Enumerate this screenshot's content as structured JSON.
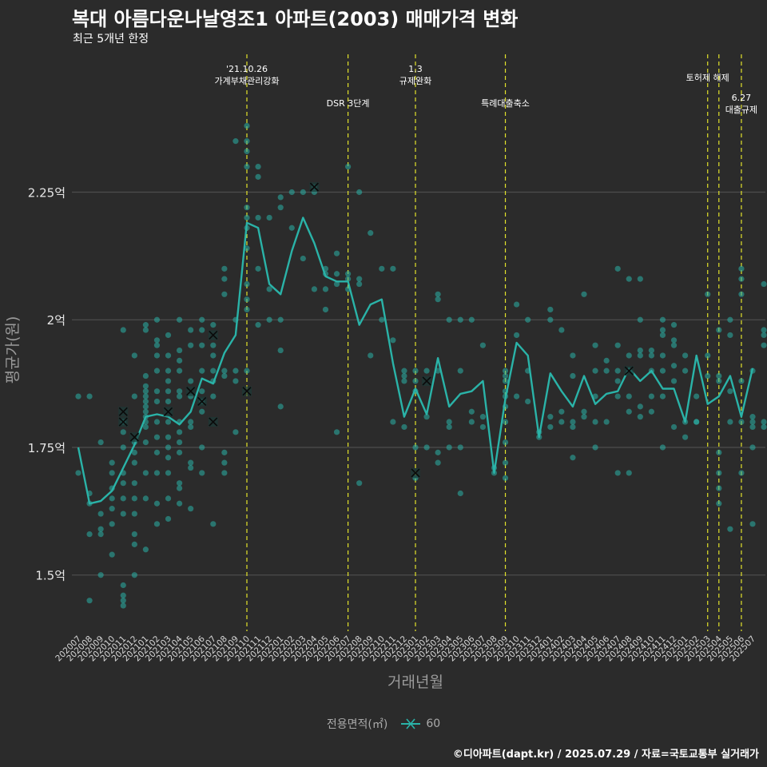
{
  "title": "복대 아름다운나날영조1 아파트(2003) 매매가격 변화",
  "subtitle": "최근 5개년 한정",
  "caption": "©디아파트(dapt.kr) / 2025.07.29 / 자료=국토교통부 실거래가",
  "legend": {
    "title": "전용면적(㎡)",
    "label": "60"
  },
  "colors": {
    "background": "#2b2b2b",
    "series": "#2ab3a8",
    "event_line": "#e3e32b",
    "grid": "#4d4d4d"
  },
  "chart_data": {
    "type": "line",
    "xlabel": "거래년월",
    "ylabel": "평균가(원)",
    "x": [
      "202007",
      "202008",
      "202009",
      "202010",
      "202011",
      "202012",
      "202101",
      "202102",
      "202103",
      "202104",
      "202105",
      "202106",
      "202107",
      "202108",
      "202109",
      "202110",
      "202111",
      "202112",
      "202201",
      "202202",
      "202203",
      "202204",
      "202205",
      "202206",
      "202207",
      "202208",
      "202209",
      "202210",
      "202211",
      "202212",
      "202301",
      "202302",
      "202303",
      "202304",
      "202305",
      "202306",
      "202307",
      "202308",
      "202309",
      "202310",
      "202311",
      "202312",
      "202401",
      "202402",
      "202403",
      "202404",
      "202405",
      "202406",
      "202407",
      "202408",
      "202409",
      "202410",
      "202411",
      "202412",
      "202501",
      "202502",
      "202503",
      "202504",
      "202505",
      "202506",
      "202507"
    ],
    "ylim": [
      1.39,
      2.52
    ],
    "yticks": [
      1.5,
      1.75,
      2.0,
      2.25
    ],
    "ytick_labels": [
      "1.5억",
      "1.75억",
      "2억",
      "2.25억"
    ],
    "series": [
      {
        "name": "60",
        "values": [
          1.75,
          1.64,
          1.645,
          1.665,
          1.71,
          1.755,
          1.81,
          1.815,
          1.81,
          1.795,
          1.82,
          1.885,
          1.875,
          1.935,
          1.97,
          2.19,
          2.18,
          2.07,
          2.05,
          2.135,
          2.2,
          2.15,
          2.085,
          2.075,
          2.075,
          1.99,
          2.03,
          2.04,
          1.915,
          1.81,
          1.865,
          1.815,
          1.925,
          1.83,
          1.855,
          1.86,
          1.88,
          1.7,
          1.845,
          1.955,
          1.93,
          1.77,
          1.895,
          1.86,
          1.83,
          1.89,
          1.835,
          1.855,
          1.86,
          1.905,
          1.88,
          1.9,
          1.865,
          1.865,
          1.8,
          1.93,
          1.835,
          1.85,
          1.89,
          1.81,
          1.905
        ]
      }
    ],
    "scatter": [
      [
        0,
        1.85
      ],
      [
        0,
        1.7
      ],
      [
        1,
        1.85
      ],
      [
        1,
        1.66
      ],
      [
        1,
        1.64
      ],
      [
        1,
        1.58
      ],
      [
        1,
        1.45
      ],
      [
        2,
        1.76
      ],
      [
        2,
        1.62
      ],
      [
        2,
        1.59
      ],
      [
        2,
        1.58
      ],
      [
        2,
        1.5
      ],
      [
        3,
        1.72
      ],
      [
        3,
        1.7
      ],
      [
        3,
        1.67
      ],
      [
        3,
        1.65
      ],
      [
        3,
        1.63
      ],
      [
        3,
        1.6
      ],
      [
        3,
        1.54
      ],
      [
        4,
        1.98
      ],
      [
        4,
        1.8
      ],
      [
        4,
        1.78
      ],
      [
        4,
        1.75
      ],
      [
        4,
        1.7
      ],
      [
        4,
        1.68
      ],
      [
        4,
        1.65
      ],
      [
        4,
        1.62
      ],
      [
        4,
        1.48
      ],
      [
        4,
        1.46
      ],
      [
        4,
        1.45
      ],
      [
        4,
        1.44
      ],
      [
        5,
        1.93
      ],
      [
        5,
        1.85
      ],
      [
        5,
        1.76
      ],
      [
        5,
        1.74
      ],
      [
        5,
        1.72
      ],
      [
        5,
        1.68
      ],
      [
        5,
        1.65
      ],
      [
        5,
        1.62
      ],
      [
        5,
        1.58
      ],
      [
        5,
        1.56
      ],
      [
        5,
        1.5
      ],
      [
        6,
        1.99
      ],
      [
        6,
        1.98
      ],
      [
        6,
        1.89
      ],
      [
        6,
        1.87
      ],
      [
        6,
        1.86
      ],
      [
        6,
        1.85
      ],
      [
        6,
        1.84
      ],
      [
        6,
        1.83
      ],
      [
        6,
        1.82
      ],
      [
        6,
        1.81
      ],
      [
        6,
        1.8
      ],
      [
        6,
        1.79
      ],
      [
        6,
        1.76
      ],
      [
        6,
        1.7
      ],
      [
        6,
        1.65
      ],
      [
        6,
        1.55
      ],
      [
        7,
        2.0
      ],
      [
        7,
        1.96
      ],
      [
        7,
        1.95
      ],
      [
        7,
        1.93
      ],
      [
        7,
        1.9
      ],
      [
        7,
        1.86
      ],
      [
        7,
        1.84
      ],
      [
        7,
        1.8
      ],
      [
        7,
        1.77
      ],
      [
        7,
        1.74
      ],
      [
        7,
        1.7
      ],
      [
        7,
        1.64
      ],
      [
        7,
        1.6
      ],
      [
        8,
        1.97
      ],
      [
        8,
        1.93
      ],
      [
        8,
        1.9
      ],
      [
        8,
        1.88
      ],
      [
        8,
        1.86
      ],
      [
        8,
        1.84
      ],
      [
        8,
        1.8
      ],
      [
        8,
        1.77
      ],
      [
        8,
        1.75
      ],
      [
        8,
        1.73
      ],
      [
        8,
        1.7
      ],
      [
        8,
        1.65
      ],
      [
        8,
        1.61
      ],
      [
        9,
        2.0
      ],
      [
        9,
        1.94
      ],
      [
        9,
        1.92
      ],
      [
        9,
        1.9
      ],
      [
        9,
        1.86
      ],
      [
        9,
        1.85
      ],
      [
        9,
        1.8
      ],
      [
        9,
        1.78
      ],
      [
        9,
        1.76
      ],
      [
        9,
        1.74
      ],
      [
        9,
        1.68
      ],
      [
        9,
        1.67
      ],
      [
        9,
        1.64
      ],
      [
        10,
        1.98
      ],
      [
        10,
        1.95
      ],
      [
        10,
        1.88
      ],
      [
        10,
        1.85
      ],
      [
        10,
        1.8
      ],
      [
        10,
        1.79
      ],
      [
        10,
        1.72
      ],
      [
        10,
        1.71
      ],
      [
        10,
        1.63
      ],
      [
        11,
        2.0
      ],
      [
        11,
        1.98
      ],
      [
        11,
        1.95
      ],
      [
        11,
        1.9
      ],
      [
        11,
        1.86
      ],
      [
        11,
        1.84
      ],
      [
        11,
        1.82
      ],
      [
        11,
        1.75
      ],
      [
        11,
        1.7
      ],
      [
        12,
        1.99
      ],
      [
        12,
        1.95
      ],
      [
        12,
        1.93
      ],
      [
        12,
        1.9
      ],
      [
        12,
        1.88
      ],
      [
        12,
        1.85
      ],
      [
        12,
        1.6
      ],
      [
        13,
        2.1
      ],
      [
        13,
        2.08
      ],
      [
        13,
        2.05
      ],
      [
        13,
        1.9
      ],
      [
        13,
        1.89
      ],
      [
        13,
        1.74
      ],
      [
        13,
        1.72
      ],
      [
        13,
        1.7
      ],
      [
        14,
        2.0
      ],
      [
        14,
        1.9
      ],
      [
        14,
        1.88
      ],
      [
        14,
        1.78
      ],
      [
        15,
        2.38
      ],
      [
        15,
        2.35
      ],
      [
        15,
        2.33
      ],
      [
        15,
        2.3
      ],
      [
        15,
        2.22
      ],
      [
        15,
        2.2
      ],
      [
        15,
        2.18
      ],
      [
        15,
        2.14
      ],
      [
        15,
        2.07
      ],
      [
        15,
        2.04
      ],
      [
        15,
        2.02
      ],
      [
        15,
        1.9
      ],
      [
        14,
        2.35
      ],
      [
        16,
        2.3
      ],
      [
        16,
        2.28
      ],
      [
        16,
        2.2
      ],
      [
        16,
        2.1
      ],
      [
        16,
        1.99
      ],
      [
        17,
        2.2
      ],
      [
        17,
        2.06
      ],
      [
        17,
        2.0
      ],
      [
        18,
        2.24
      ],
      [
        18,
        2.22
      ],
      [
        18,
        2.0
      ],
      [
        18,
        1.94
      ],
      [
        18,
        1.83
      ],
      [
        19,
        2.25
      ],
      [
        19,
        2.18
      ],
      [
        20,
        2.25
      ],
      [
        20,
        2.12
      ],
      [
        21,
        2.26
      ],
      [
        21,
        2.25
      ],
      [
        21,
        2.06
      ],
      [
        22,
        2.1
      ],
      [
        22,
        2.09
      ],
      [
        22,
        2.06
      ],
      [
        22,
        2.02
      ],
      [
        23,
        2.13
      ],
      [
        23,
        2.09
      ],
      [
        23,
        2.07
      ],
      [
        23,
        1.78
      ],
      [
        24,
        2.3
      ],
      [
        24,
        2.09
      ],
      [
        24,
        2.08
      ],
      [
        24,
        2.06
      ],
      [
        25,
        2.25
      ],
      [
        25,
        2.08
      ],
      [
        25,
        2.07
      ],
      [
        25,
        1.68
      ],
      [
        26,
        2.17
      ],
      [
        26,
        1.93
      ],
      [
        27,
        2.1
      ],
      [
        27,
        2.0
      ],
      [
        28,
        2.1
      ],
      [
        28,
        1.96
      ],
      [
        28,
        1.8
      ],
      [
        29,
        1.9
      ],
      [
        29,
        1.89
      ],
      [
        29,
        1.88
      ],
      [
        29,
        1.79
      ],
      [
        30,
        1.9
      ],
      [
        30,
        1.88
      ],
      [
        30,
        1.86
      ],
      [
        30,
        1.75
      ],
      [
        30,
        1.69
      ],
      [
        31,
        1.9
      ],
      [
        31,
        1.81
      ],
      [
        31,
        1.75
      ],
      [
        32,
        2.05
      ],
      [
        32,
        2.04
      ],
      [
        32,
        1.9
      ],
      [
        32,
        1.74
      ],
      [
        32,
        1.72
      ],
      [
        33,
        2.0
      ],
      [
        33,
        1.8
      ],
      [
        33,
        1.79
      ],
      [
        33,
        1.75
      ],
      [
        34,
        2.0
      ],
      [
        34,
        1.9
      ],
      [
        34,
        1.75
      ],
      [
        34,
        1.66
      ],
      [
        35,
        2.0
      ],
      [
        35,
        1.82
      ],
      [
        35,
        1.8
      ],
      [
        36,
        1.95
      ],
      [
        36,
        1.81
      ],
      [
        36,
        1.79
      ],
      [
        37,
        1.71
      ],
      [
        37,
        1.7
      ],
      [
        38,
        1.9
      ],
      [
        38,
        1.89
      ],
      [
        38,
        1.88
      ],
      [
        38,
        1.86
      ],
      [
        38,
        1.85
      ],
      [
        38,
        1.83
      ],
      [
        38,
        1.8
      ],
      [
        38,
        1.76
      ],
      [
        38,
        1.72
      ],
      [
        38,
        1.69
      ],
      [
        39,
        2.03
      ],
      [
        39,
        1.97
      ],
      [
        39,
        1.85
      ],
      [
        40,
        2.0
      ],
      [
        40,
        1.9
      ],
      [
        40,
        1.84
      ],
      [
        41,
        1.78
      ],
      [
        41,
        1.77
      ],
      [
        42,
        2.02
      ],
      [
        42,
        2.0
      ],
      [
        42,
        1.81
      ],
      [
        42,
        1.79
      ],
      [
        43,
        1.98
      ],
      [
        43,
        1.82
      ],
      [
        43,
        1.8
      ],
      [
        44,
        1.93
      ],
      [
        44,
        1.89
      ],
      [
        44,
        1.8
      ],
      [
        44,
        1.79
      ],
      [
        44,
        1.73
      ],
      [
        45,
        2.05
      ],
      [
        45,
        1.82
      ],
      [
        45,
        1.81
      ],
      [
        46,
        1.95
      ],
      [
        46,
        1.9
      ],
      [
        46,
        1.85
      ],
      [
        46,
        1.8
      ],
      [
        46,
        1.75
      ],
      [
        47,
        1.92
      ],
      [
        47,
        1.9
      ],
      [
        47,
        1.8
      ],
      [
        48,
        2.1
      ],
      [
        48,
        1.95
      ],
      [
        48,
        1.9
      ],
      [
        48,
        1.88
      ],
      [
        48,
        1.85
      ],
      [
        48,
        1.7
      ],
      [
        49,
        2.08
      ],
      [
        49,
        1.93
      ],
      [
        49,
        1.85
      ],
      [
        49,
        1.82
      ],
      [
        49,
        1.7
      ],
      [
        50,
        2.08
      ],
      [
        50,
        2.0
      ],
      [
        50,
        1.94
      ],
      [
        50,
        1.93
      ],
      [
        50,
        1.83
      ],
      [
        50,
        1.81
      ],
      [
        51,
        1.94
      ],
      [
        51,
        1.93
      ],
      [
        51,
        1.9
      ],
      [
        51,
        1.85
      ],
      [
        51,
        1.82
      ],
      [
        52,
        2.0
      ],
      [
        52,
        1.98
      ],
      [
        52,
        1.97
      ],
      [
        52,
        1.93
      ],
      [
        52,
        1.9
      ],
      [
        52,
        1.85
      ],
      [
        52,
        1.75
      ],
      [
        53,
        1.99
      ],
      [
        53,
        1.96
      ],
      [
        53,
        1.95
      ],
      [
        53,
        1.91
      ],
      [
        53,
        1.88
      ],
      [
        53,
        1.79
      ],
      [
        54,
        1.93
      ],
      [
        54,
        1.9
      ],
      [
        54,
        1.8
      ],
      [
        54,
        1.77
      ],
      [
        55,
        1.85
      ],
      [
        55,
        1.8
      ],
      [
        55,
        1.8
      ],
      [
        56,
        2.05
      ],
      [
        56,
        1.93
      ],
      [
        56,
        1.89
      ],
      [
        57,
        1.98
      ],
      [
        57,
        1.89
      ],
      [
        57,
        1.88
      ],
      [
        57,
        1.74
      ],
      [
        57,
        1.7
      ],
      [
        57,
        1.67
      ],
      [
        57,
        1.64
      ],
      [
        58,
        2.0
      ],
      [
        58,
        1.97
      ],
      [
        58,
        1.86
      ],
      [
        58,
        1.8
      ],
      [
        58,
        1.59
      ],
      [
        59,
        2.1
      ],
      [
        59,
        2.08
      ],
      [
        59,
        2.05
      ],
      [
        59,
        1.88
      ],
      [
        59,
        1.8
      ],
      [
        59,
        1.7
      ],
      [
        60,
        1.9
      ],
      [
        60,
        1.81
      ],
      [
        60,
        1.8
      ],
      [
        60,
        1.79
      ],
      [
        60,
        1.75
      ],
      [
        60,
        1.6
      ],
      [
        61,
        2.07
      ],
      [
        61,
        1.98
      ],
      [
        61,
        1.97
      ],
      [
        61,
        1.95
      ],
      [
        61,
        1.8
      ],
      [
        61,
        1.79
      ]
    ],
    "x_markers": [
      [
        4,
        1.82
      ],
      [
        4,
        1.8
      ],
      [
        5,
        1.77
      ],
      [
        8,
        1.82
      ],
      [
        10,
        1.86
      ],
      [
        11,
        1.84
      ],
      [
        12,
        1.97
      ],
      [
        12,
        1.8
      ],
      [
        15,
        1.86
      ],
      [
        21,
        2.26
      ],
      [
        30,
        1.7
      ],
      [
        31,
        1.88
      ],
      [
        49,
        1.9
      ]
    ],
    "events": [
      {
        "index": 15,
        "label": "'21.10.26\n가계부채관리강화",
        "level": 0
      },
      {
        "index": 24,
        "label": "DSR 3단계",
        "level": 1
      },
      {
        "index": 30,
        "label": "1.3\n규제완화",
        "level": 0
      },
      {
        "index": 38,
        "label": "특례대출축소",
        "level": 1
      },
      {
        "index": 56,
        "label": "토허제 해제",
        "level": 0
      },
      {
        "index": 57,
        "label": "",
        "level": 0
      },
      {
        "index": 59,
        "label": "6.27\n대출규제",
        "level": 2
      }
    ]
  }
}
